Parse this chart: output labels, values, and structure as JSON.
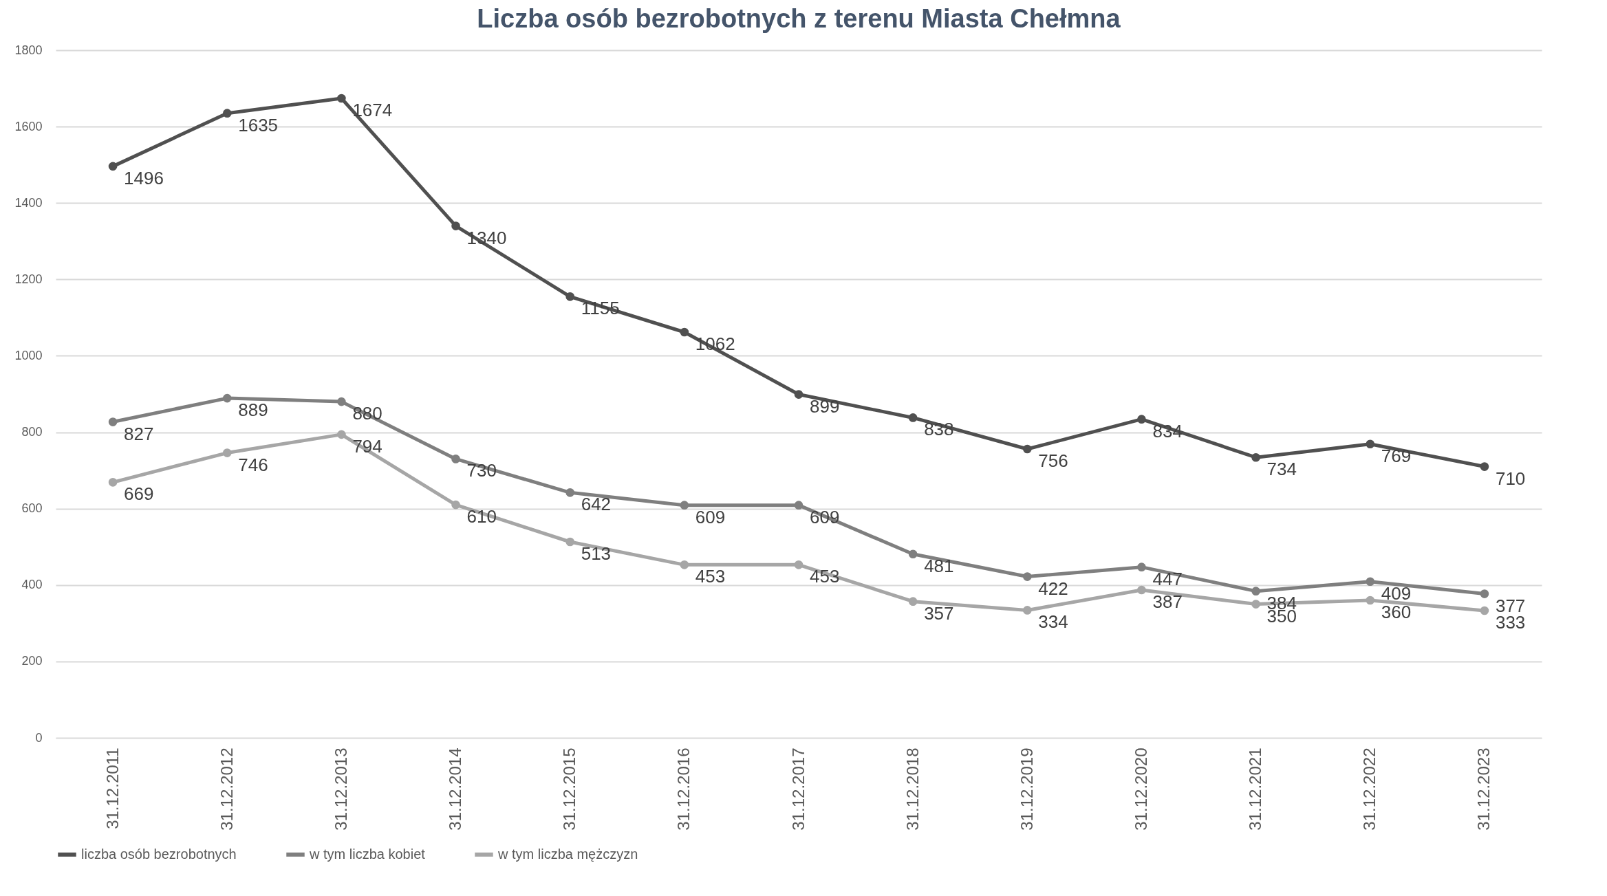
{
  "chart_data": {
    "type": "line",
    "title": "Liczba osób bezrobotnych z terenu Miasta Chełmna",
    "categories": [
      "31.12.2011",
      "31.12.2012",
      "31.12.2013",
      "31.12.2014",
      "31.12.2015",
      "31.12.2016",
      "31.12.2017",
      "31.12.2018",
      "31.12.2019",
      "31.12.2020",
      "31.12.2021",
      "31.12.2022",
      "31.12.2023"
    ],
    "series": [
      {
        "name": "liczba osób bezrobotnych",
        "color": "#505050",
        "values": [
          1496,
          1635,
          1674,
          1340,
          1155,
          1062,
          899,
          838,
          756,
          834,
          734,
          769,
          710
        ]
      },
      {
        "name": "w tym liczba kobiet",
        "color": "#7f7f7f",
        "values": [
          827,
          889,
          880,
          730,
          642,
          609,
          609,
          481,
          422,
          447,
          384,
          409,
          377
        ]
      },
      {
        "name": "w tym liczba mężczyzn",
        "color": "#a6a6a6",
        "values": [
          669,
          746,
          794,
          610,
          513,
          453,
          453,
          357,
          334,
          387,
          350,
          360,
          333
        ]
      }
    ],
    "ylim": [
      0,
      1800
    ],
    "yticks": [
      0,
      200,
      400,
      600,
      800,
      1000,
      1200,
      1400,
      1600,
      1800
    ],
    "grid": "y",
    "legend": "bottom",
    "marker": "circle",
    "line_style": "solid",
    "data_labels": true
  }
}
